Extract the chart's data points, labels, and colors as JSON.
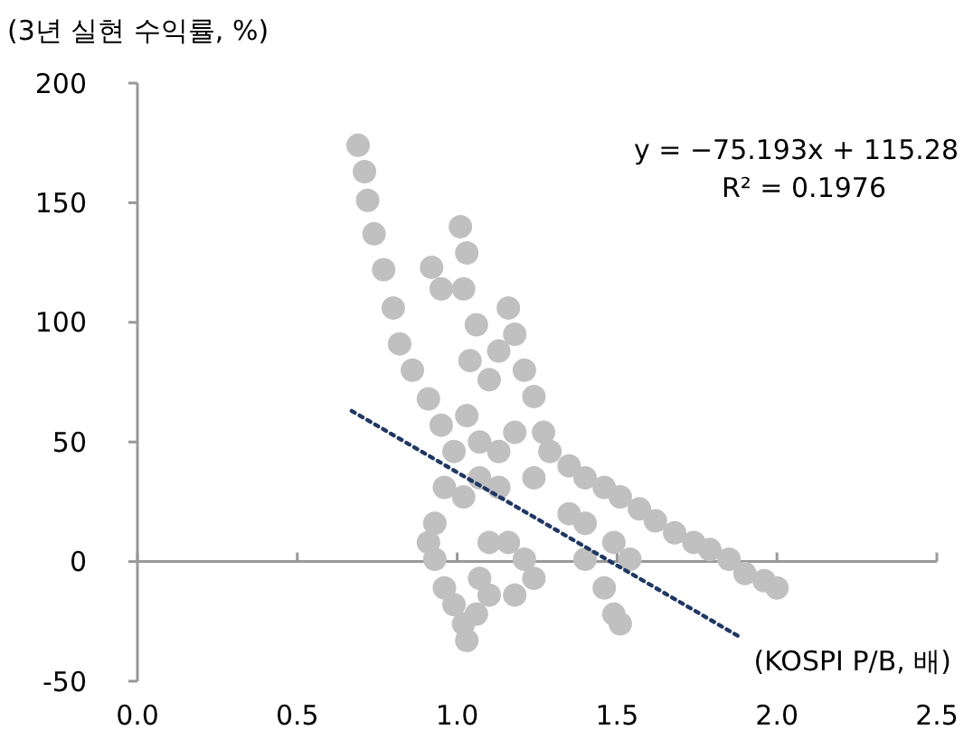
{
  "chart_data": {
    "type": "scatter",
    "ylabel": "(3년 실현 수익률, %)",
    "xlabel": "(KOSPI P/B, 배)",
    "xlim": [
      0,
      2.5
    ],
    "xticks": [
      {
        "value": 0,
        "label": "0.0"
      },
      {
        "value": 0.5,
        "label": "0.5"
      },
      {
        "value": 1,
        "label": "1.0"
      },
      {
        "value": 1.5,
        "label": "1.5"
      },
      {
        "value": 2,
        "label": "2.0"
      },
      {
        "value": 2.5,
        "label": "2.5"
      }
    ],
    "ylim": [
      -50,
      200
    ],
    "yticks": [
      -50,
      0,
      50,
      100,
      150,
      200
    ],
    "marker": "circle",
    "annotations": [
      "y = −75.193x + 115.28",
      "R² = 0.1976"
    ],
    "series": [
      {
        "color": "#c0c0c0",
        "x": [
          0.69,
          0.71,
          0.72,
          0.74,
          0.77,
          0.8,
          0.82,
          0.86,
          0.91,
          0.95,
          0.99,
          1.01,
          1.03,
          1.02,
          1.06,
          1.04,
          1.1,
          1.13,
          1.16,
          1.18,
          1.21,
          1.24,
          1.27,
          1.18,
          1.13,
          1.07,
          1.03,
          0.92,
          0.95,
          0.93,
          0.91,
          0.93,
          0.96,
          0.99,
          1.02,
          1.03,
          1.06,
          1.07,
          1.1,
          1.16,
          1.21,
          1.24,
          1.18,
          1.1,
          1.29,
          1.35,
          1.4,
          1.46,
          1.51,
          1.57,
          1.62,
          1.68,
          1.74,
          1.79,
          1.85,
          1.9,
          1.96,
          2.0,
          1.4,
          1.49,
          1.54,
          1.4,
          1.46,
          1.49,
          1.51,
          0.96,
          1.02,
          1.07,
          1.13,
          1.24,
          1.35
        ],
        "values": [
          174,
          163,
          151,
          137,
          122,
          106,
          91,
          80,
          68,
          57,
          46,
          140,
          129,
          114,
          99,
          84,
          76,
          88,
          106,
          95,
          80,
          69,
          54,
          54,
          46,
          50,
          61,
          123,
          114,
          16,
          8,
          1,
          -11,
          -18,
          -26,
          -33,
          -22,
          -7,
          8,
          8,
          1,
          -7,
          -14,
          -14,
          46,
          40,
          35,
          31,
          27,
          22,
          17,
          12,
          8,
          5,
          1,
          -5,
          -8,
          -11,
          16,
          8,
          1,
          1,
          -11,
          -22,
          -26,
          31,
          27,
          35,
          31,
          35,
          20
        ]
      },
      {
        "type": "line",
        "color": "#1f3864",
        "line_style": "dotted",
        "marker": "none",
        "x": [
          0.67,
          1.89
        ],
        "values": [
          63,
          -32
        ]
      }
    ]
  }
}
